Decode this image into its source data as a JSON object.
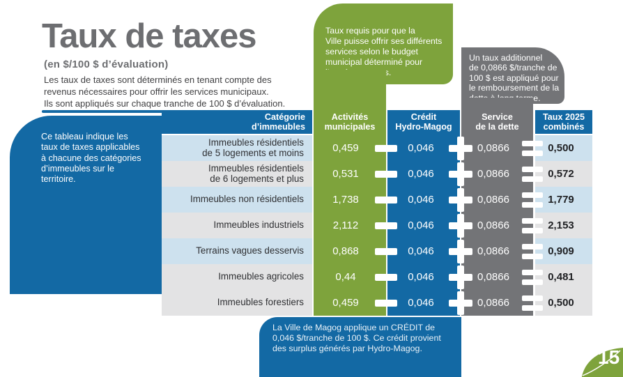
{
  "page": {
    "title": "Taux de taxes",
    "subtitle": "(en $/100 $ d’évaluation)",
    "intro": "Les taux de taxes sont déterminés en tenant compte des\nrevenus nécessaires pour offrir les services municipaux.\nIls sont appliqués sur chaque tranche de 100 $ d’évaluation.",
    "page_number": "15"
  },
  "callouts": {
    "green": "Taux requis pour que la\nVille puisse offrir ses différents\nservices selon le budget\nmunicipal déterminé pour\nl’année en cours.",
    "gray": "Un taux additionnel\nde 0,0866 $/tranche de\n100 $ est appliqué pour\nle remboursement de la\ndette à long terme.",
    "blue_left": "Ce tableau indique les\ntaux de taxes applicables\nà chacune des catégories\nd’immeubles sur le\nterritoire.",
    "blue_bottom": "La Ville de Magog applique un CRÉDIT de\n0,046 $/tranche de 100 $. Ce crédit provient\ndes surplus générés par Hydro-Magog."
  },
  "table": {
    "headers": {
      "category": "Catégorie\nd’immeubles",
      "municipal": "Activités\nmunicipales",
      "credit": "Crédit\nHydro-Magog",
      "debt": "Service\nde la dette",
      "combined": "Taux 2025\ncombinés"
    },
    "operators": {
      "minus": "−",
      "plus": "+",
      "equals": "="
    },
    "rows": [
      {
        "category": "Immeubles résidentiels\nde 5 logements et moins",
        "municipal": "0,459",
        "credit": "0,046",
        "debt": "0,0866",
        "combined": "0,500",
        "shade": "blue"
      },
      {
        "category": "Immeubles résidentiels\nde 6 logements et plus",
        "municipal": "0,531",
        "credit": "0,046",
        "debt": "0,0866",
        "combined": "0,572",
        "shade": "gray"
      },
      {
        "category": "Immeubles non résidentiels",
        "municipal": "1,738",
        "credit": "0,046",
        "debt": "0,0866",
        "combined": "1,779",
        "shade": "blue"
      },
      {
        "category": "Immeubles industriels",
        "municipal": "2,112",
        "credit": "0,046",
        "debt": "0,0866",
        "combined": "2,153",
        "shade": "gray"
      },
      {
        "category": "Terrains vagues desservis",
        "municipal": "0,868",
        "credit": "0,046",
        "debt": "0,0866",
        "combined": "0,909",
        "shade": "blue"
      },
      {
        "category": "Immeubles agricoles",
        "municipal": "0,44",
        "credit": "0,046",
        "debt": "0,0866",
        "combined": "0,481",
        "shade": "gray"
      },
      {
        "category": "Immeubles forestiers",
        "municipal": "0,459",
        "credit": "0,046",
        "debt": "0,0866",
        "combined": "0,500",
        "shade": "gray"
      }
    ]
  },
  "colors": {
    "blue": "#1369A4",
    "green": "#7EA33C",
    "gray": "#737477",
    "row_blue": "#CDE1EE",
    "row_gray": "#E3E3E4",
    "title_gray": "#6D6E71",
    "text_dark": "#404042"
  }
}
